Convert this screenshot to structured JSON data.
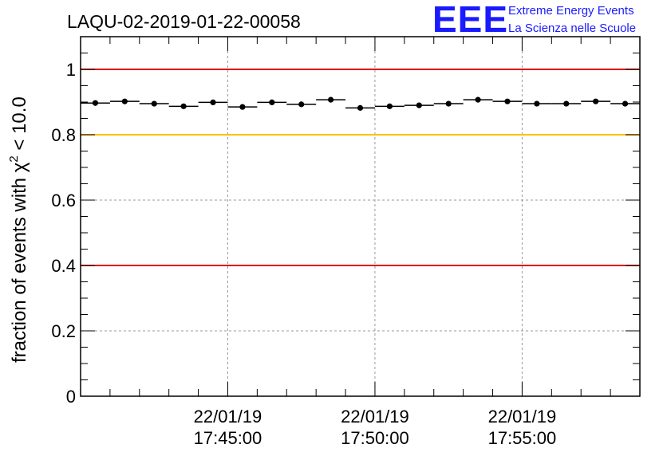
{
  "logo": {
    "mark": "EEE",
    "line1": "Extreme Energy Events",
    "line2": "La Scienza nelle Scuole"
  },
  "chart_data": {
    "type": "scatter",
    "title": "LAQU-02-2019-01-22-00058",
    "ylabel_pre": "fraction of events with ",
    "ylabel_sym": "χ",
    "ylabel_sup": "2",
    "ylabel_post": " < 10.0",
    "ylim": [
      0,
      1.1
    ],
    "yticks": [
      {
        "value": 0,
        "label": "0"
      },
      {
        "value": 0.2,
        "label": "0.2"
      },
      {
        "value": 0.4,
        "label": "0.4"
      },
      {
        "value": 0.6,
        "label": "0.6"
      },
      {
        "value": 0.8,
        "label": "0.8"
      },
      {
        "value": 1,
        "label": "1"
      }
    ],
    "xlim_minutes": [
      0,
      19
    ],
    "xticks": [
      {
        "minute": 5,
        "date": "22/01/19",
        "time": "17:45:00"
      },
      {
        "minute": 10,
        "date": "22/01/19",
        "time": "17:50:00"
      },
      {
        "minute": 15,
        "date": "22/01/19",
        "time": "17:55:00"
      }
    ],
    "bin_width_minutes": 1,
    "values": [
      0.897,
      0.902,
      0.895,
      0.887,
      0.899,
      0.885,
      0.899,
      0.893,
      0.907,
      0.882,
      0.887,
      0.89,
      0.895,
      0.907,
      0.902,
      0.895,
      0.895,
      0.902,
      0.895
    ],
    "reference_lines": [
      {
        "value": 1.0,
        "color": "#e00000"
      },
      {
        "value": 0.8,
        "color": "#ffc000"
      },
      {
        "value": 0.4,
        "color": "#e00000"
      }
    ],
    "grid": true
  }
}
